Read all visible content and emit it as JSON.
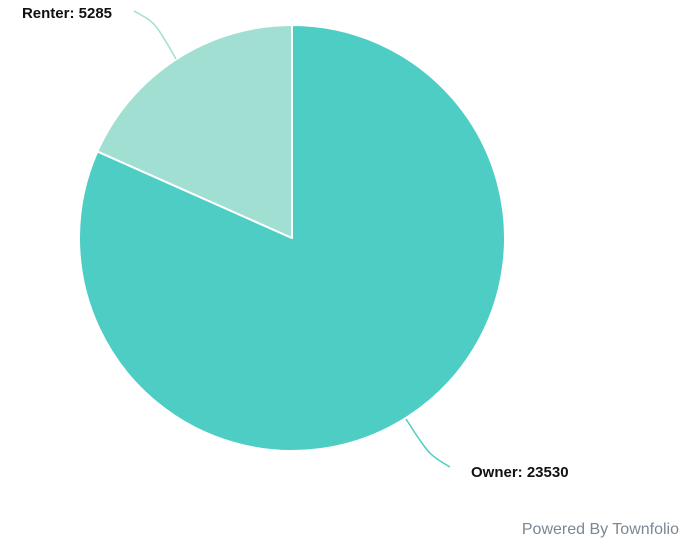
{
  "chart_data": {
    "type": "pie",
    "slices": [
      {
        "label": "Owner",
        "value": 23530,
        "color": "#4ecdc4"
      },
      {
        "label": "Renter",
        "value": 5285,
        "color": "#a0dfd1"
      }
    ],
    "label_separator": ": "
  },
  "footer": {
    "credit": "Powered By Townfolio"
  }
}
